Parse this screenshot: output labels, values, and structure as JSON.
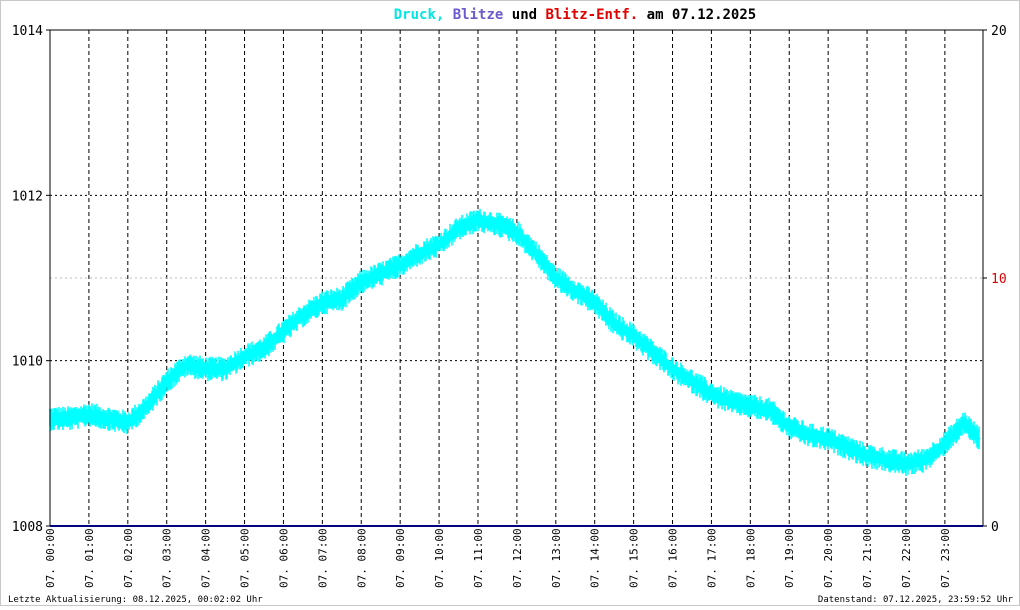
{
  "chart_data": {
    "type": "line",
    "title_parts": [
      {
        "text": "Druck,",
        "color": "#00e5e5"
      },
      {
        "text": "Blitze",
        "color": "#6a5acd"
      },
      {
        "text": "und",
        "color": "#000000"
      },
      {
        "text": "Blitz-Entf.",
        "color": "#e00000"
      },
      {
        "text": "am 07.12.2025",
        "color": "#000000"
      }
    ],
    "left_axis": {
      "min": 1008,
      "max": 1014,
      "ticks": [
        "1008",
        "1010",
        "1012",
        "1014"
      ],
      "tick_values": [
        1008,
        1010,
        1012,
        1014
      ]
    },
    "right_axis": {
      "min": 0,
      "max": 20,
      "ticks": [
        "0",
        "10",
        "20"
      ],
      "tick_values": [
        0,
        10,
        20
      ],
      "tick_colors": [
        "#000000",
        "#e00000",
        "#000000"
      ]
    },
    "x_tick_labels": [
      "07. 00:00",
      "07. 01:00",
      "07. 02:00",
      "07. 03:00",
      "07. 04:00",
      "07. 05:00",
      "07. 06:00",
      "07. 07:00",
      "07. 08:00",
      "07. 09:00",
      "07. 10:00",
      "07. 11:00",
      "07. 12:00",
      "07. 13:00",
      "07. 14:00",
      "07. 15:00",
      "07. 16:00",
      "07. 17:00",
      "07. 18:00",
      "07. 19:00",
      "07. 20:00",
      "07. 21:00",
      "07. 22:00",
      "07. 23:00"
    ],
    "x_range_hours": [
      0,
      23.98
    ],
    "series": [
      {
        "color": "#00ffff",
        "axis": "left",
        "x_hours": [
          0.0,
          0.5,
          1.0,
          1.5,
          2.0,
          2.5,
          3.0,
          3.5,
          4.0,
          4.5,
          5.0,
          5.5,
          6.0,
          6.5,
          7.0,
          7.5,
          8.0,
          8.5,
          9.0,
          9.5,
          10.0,
          10.5,
          11.0,
          11.5,
          12.0,
          12.5,
          13.0,
          13.5,
          14.0,
          14.5,
          15.0,
          15.5,
          16.0,
          16.5,
          17.0,
          17.5,
          18.0,
          18.5,
          19.0,
          19.5,
          20.0,
          20.5,
          21.0,
          21.5,
          22.0,
          22.5,
          23.0,
          23.5,
          23.9
        ],
        "values": [
          1009.3,
          1009.3,
          1009.35,
          1009.3,
          1009.25,
          1009.45,
          1009.75,
          1009.95,
          1009.9,
          1009.9,
          1010.05,
          1010.15,
          1010.35,
          1010.55,
          1010.7,
          1010.75,
          1010.95,
          1011.05,
          1011.15,
          1011.3,
          1011.4,
          1011.6,
          1011.7,
          1011.65,
          1011.55,
          1011.3,
          1011.0,
          1010.85,
          1010.7,
          1010.45,
          1010.3,
          1010.1,
          1009.9,
          1009.75,
          1009.6,
          1009.5,
          1009.45,
          1009.4,
          1009.2,
          1009.1,
          1009.05,
          1008.95,
          1008.85,
          1008.8,
          1008.75,
          1008.8,
          1009.0,
          1009.25,
          1009.05
        ],
        "noise_amplitude": 0.15
      },
      {
        "color": "#000080",
        "axis": "right",
        "x_hours": [
          0,
          23.98
        ],
        "values": [
          0,
          0
        ]
      }
    ],
    "grid": true
  },
  "footer": {
    "left": "Letzte Aktualisierung: 08.12.2025, 00:02:02 Uhr",
    "right": "Datenstand: 07.12.2025, 23:59:52 Uhr"
  }
}
